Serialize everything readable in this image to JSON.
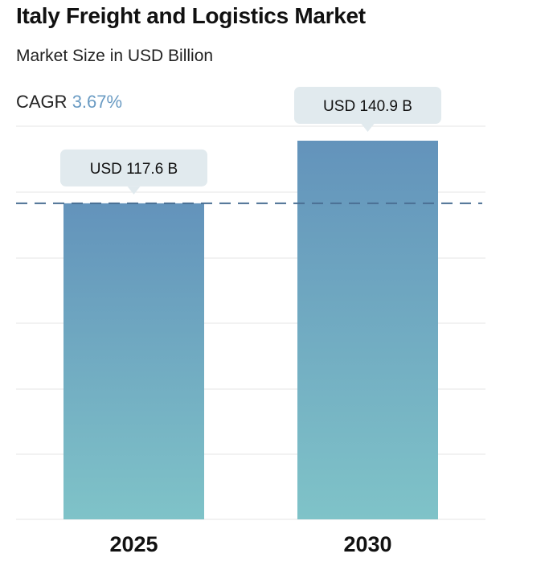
{
  "header": {
    "title": "Italy Freight and Logistics Market",
    "subtitle": "Market Size in USD Billion",
    "cagr_label": "CAGR",
    "cagr_value": "3.67%"
  },
  "colors": {
    "bar_top": "#6393bb",
    "bar_bottom": "#7fc3c8",
    "callout_bg": "#e1eaee",
    "dashed_line": "#4a6f93",
    "grid": "#e6e6e6",
    "cagr_accent": "#6a9bc3"
  },
  "chart_data": {
    "type": "bar",
    "title": "Italy Freight and Logistics Market",
    "ylabel": "Market Size in USD Billion",
    "categories": [
      "2025",
      "2030"
    ],
    "values": [
      117.6,
      140.9
    ],
    "data_labels": [
      "USD 117.6 B",
      "USD 140.9 B"
    ],
    "reference_line": 117.6,
    "grid": true,
    "legend": "none"
  }
}
